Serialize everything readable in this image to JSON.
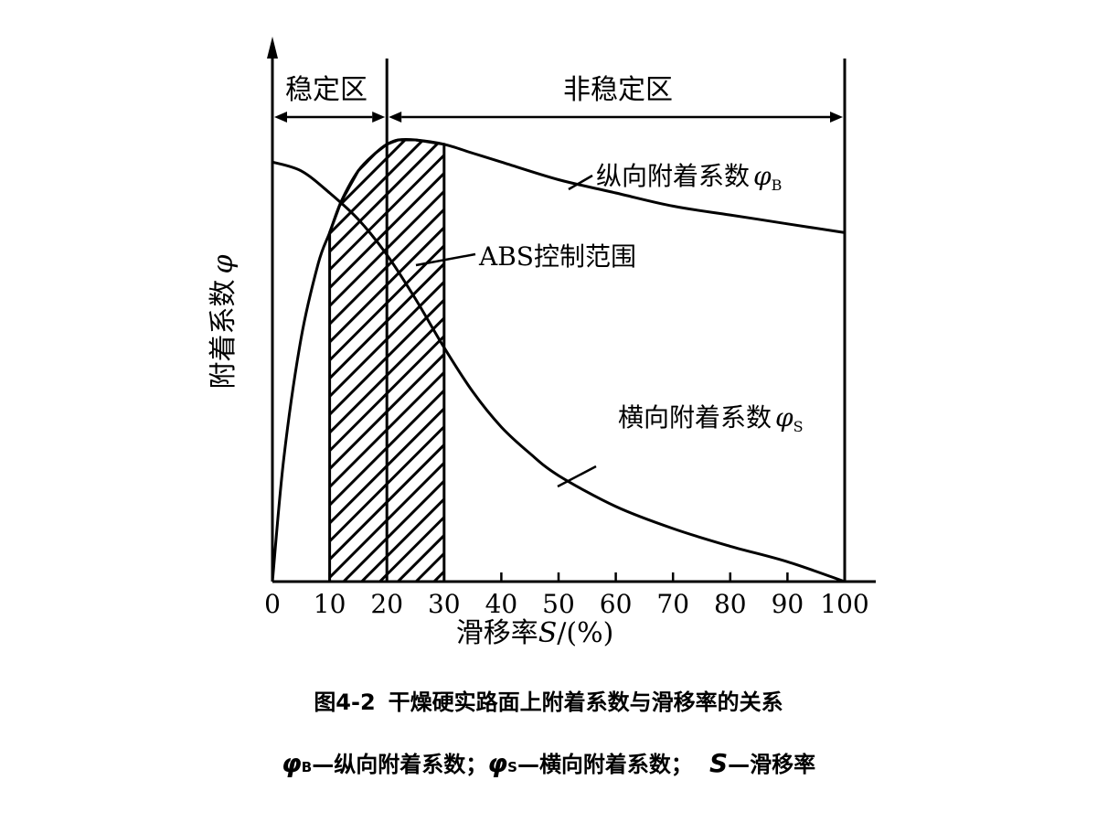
{
  "chart_data": {
    "type": "line",
    "x_axis": {
      "label": "滑移率",
      "label_var": "S",
      "label_unit": "/(%)",
      "ticks": [
        0,
        10,
        20,
        30,
        40,
        50,
        60,
        70,
        80,
        90,
        100
      ],
      "tick_labels": [
        "0",
        "10",
        "20",
        "30",
        "40",
        "50",
        "60",
        "70",
        "80",
        "90",
        "100"
      ],
      "range": [
        0,
        100
      ]
    },
    "y_axis": {
      "label": "附着系数",
      "label_var": "φ"
    },
    "series": [
      {
        "id": "phiB",
        "name": "纵向附着系数",
        "symbol": "φ",
        "subscript": "B",
        "points": [
          [
            0,
            0
          ],
          [
            2,
            0.28
          ],
          [
            5,
            0.55
          ],
          [
            8,
            0.72
          ],
          [
            10,
            0.79
          ],
          [
            12,
            0.86
          ],
          [
            15,
            0.93
          ],
          [
            18,
            0.97
          ],
          [
            20,
            0.99
          ],
          [
            22,
            1.0
          ],
          [
            25,
            1.0
          ],
          [
            30,
            0.99
          ],
          [
            35,
            0.97
          ],
          [
            40,
            0.95
          ],
          [
            50,
            0.91
          ],
          [
            60,
            0.88
          ],
          [
            70,
            0.85
          ],
          [
            80,
            0.83
          ],
          [
            90,
            0.81
          ],
          [
            100,
            0.79
          ]
        ]
      },
      {
        "id": "phiS",
        "name": "横向附着系数",
        "symbol": "φ",
        "subscript": "S",
        "points": [
          [
            0,
            0.95
          ],
          [
            5,
            0.93
          ],
          [
            10,
            0.88
          ],
          [
            15,
            0.82
          ],
          [
            20,
            0.74
          ],
          [
            25,
            0.64
          ],
          [
            30,
            0.53
          ],
          [
            35,
            0.43
          ],
          [
            40,
            0.35
          ],
          [
            45,
            0.29
          ],
          [
            50,
            0.24
          ],
          [
            60,
            0.17
          ],
          [
            70,
            0.12
          ],
          [
            80,
            0.08
          ],
          [
            90,
            0.045
          ],
          [
            100,
            0
          ]
        ]
      }
    ],
    "regions": [
      {
        "id": "stable",
        "label": "稳定区",
        "x_range": [
          0,
          20
        ]
      },
      {
        "id": "unstable",
        "label": "非稳定区",
        "x_range": [
          20,
          100
        ]
      }
    ],
    "shaded_band": {
      "label": "ABS控制范围",
      "x_range": [
        10,
        30
      ]
    },
    "grid": false,
    "legend": "none"
  },
  "caption": {
    "figure_no": "图4-2",
    "title": "干燥硬实路面上附着系数与滑移率的关系",
    "legend_items": [
      {
        "symbol": "φ",
        "subscript": "B",
        "text": "—纵向附着系数；"
      },
      {
        "symbol": "φ",
        "subscript": "S",
        "text": "—横向附着系数；"
      },
      {
        "symbol": "S",
        "subscript": "",
        "text": "—滑移率"
      }
    ]
  }
}
